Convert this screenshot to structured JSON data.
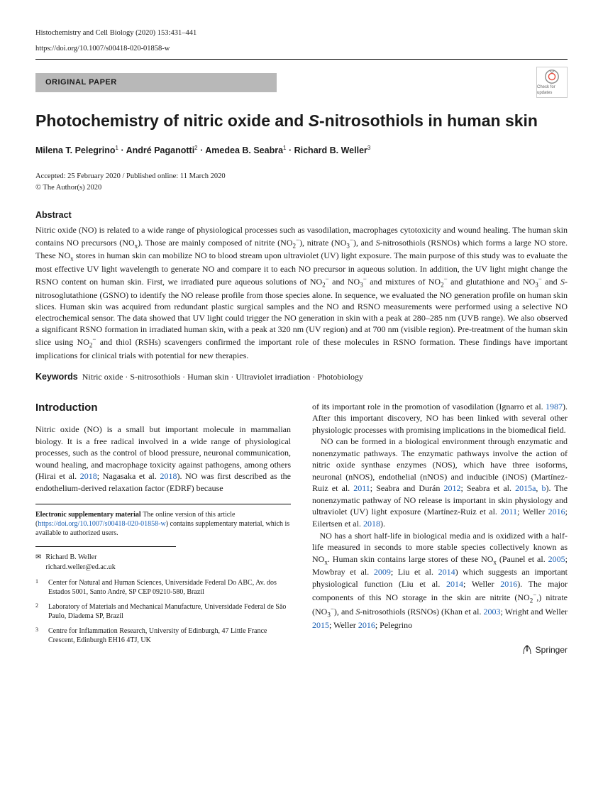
{
  "header": {
    "journal_line": "Histochemistry and Cell Biology (2020) 153:431–441",
    "doi_line": "https://doi.org/10.1007/s00418-020-01858-w",
    "paper_type": "ORIGINAL PAPER",
    "check_updates": "Check for updates"
  },
  "title_parts": {
    "pre": "Photochemistry of nitric oxide and ",
    "italic": "S",
    "post": "-nitrosothiols in human skin"
  },
  "authors_html": "Milena T. Pelegrino<sup>1</sup> · André Paganotti<sup>2</sup> · Amedea B. Seabra<sup>1</sup> · Richard B. Weller<sup>3</sup>",
  "pub": {
    "dates": "Accepted: 25 February 2020 / Published online: 11 March 2020",
    "copyright": "© The Author(s) 2020"
  },
  "abstract": {
    "heading": "Abstract",
    "text_html": "Nitric oxide (NO) is related to a wide range of physiological processes such as vasodilation, macrophages cytotoxicity and wound healing. The human skin contains NO precursors (NO<sub>x</sub>). Those are mainly composed of nitrite (NO<sub>2</sub><sup>−</sup>), nitrate (NO<sub>3</sub><sup>−</sup>), and <i>S</i>-nitrosothiols (RSNOs) which forms a large NO store. These NO<sub>x</sub> stores in human skin can mobilize NO to blood stream upon ultraviolet (UV) light exposure. The main purpose of this study was to evaluate the most effective UV light wavelength to generate NO and compare it to each NO precursor in aqueous solution. In addition, the UV light might change the RSNO content on human skin. First, we irradiated pure aqueous solutions of NO<sub>2</sub><sup>−</sup> and NO<sub>3</sub><sup>−</sup> and mixtures of NO<sub>2</sub><sup>−</sup> and glutathione and NO<sub>3</sub><sup>−</sup> and <i>S</i>-nitrosoglutathione (GSNO) to identify the NO release profile from those species alone. In sequence, we evaluated the NO generation profile on human skin slices. Human skin was acquired from redundant plastic surgical samples and the NO and RSNO measurements were performed using a selective NO electrochemical sensor. The data showed that UV light could trigger the NO generation in skin with a peak at 280–285 nm (UVB range). We also observed a significant RSNO formation in irradiated human skin, with a peak at 320 nm (UV region) and at 700 nm (visible region). Pre-treatment of the human skin slice using NO<sub>2</sub><sup>−</sup> and thiol (RSHs) scavengers confirmed the important role of these molecules in RSNO formation. These findings have important implications for clinical trials with potential for new therapies."
  },
  "keywords": {
    "label": "Keywords",
    "text": "Nitric oxide · S-nitrosothiols · Human skin · Ultraviolet irradiation · Photobiology"
  },
  "intro": {
    "heading": "Introduction",
    "left_html": "Nitric oxide (NO) is a small but important molecule in mammalian biology. It is a free radical involved in a wide range of physiological processes, such as the control of blood pressure, neuronal communication, wound healing, and macrophage toxicity against pathogens, among others (Hirai et al. <span class='link'>2018</span>; Nagasaka et al. <span class='link'>2018</span>). NO was first described as the endothelium-derived relaxation factor (EDRF) because",
    "right_html": "of its important role in the promotion of vasodilation (Ignarro et al. <span class='link'>1987</span>). After this important discovery, NO has been linked with several other physiologic processes with promising implications in the biomedical field.<br>&nbsp;&nbsp;&nbsp;NO can be formed in a biological environment through enzymatic and nonenzymatic pathways. The enzymatic pathways involve the action of nitric oxide synthase enzymes (NOS), which have three isoforms, neuronal (nNOS), endothelial (nNOS) and inducible (iNOS) (Martínez-Ruiz et al. <span class='link'>2011</span>; Seabra and Durán <span class='link'>2012</span>; Seabra et al. <span class='link'>2015a</span>, <span class='link'>b</span>). The nonenzymatic pathway of NO release is important in skin physiology and ultraviolet (UV) light exposure (Martínez-Ruiz et al. <span class='link'>2011</span>; Weller <span class='link'>2016</span>; Eilertsen et al. <span class='link'>2018</span>).<br>&nbsp;&nbsp;&nbsp;NO has a short half-life in biological media and is oxidized with a half-life measured in seconds to more stable species collectively known as NO<sub>x</sub>. Human skin contains large stores of these NO<sub>x</sub> (Paunel et al. <span class='link'>2005</span>; Mowbray et al. <span class='link'>2009</span>; Liu et al. <span class='link'>2014</span>) which suggests an important physiological function (Liu et al. <span class='link'>2014</span>; Weller <span class='link'>2016</span>). The major components of this NO storage in the skin are nitrite (NO<sub>2</sub><sup>−</sup>,) nitrate (NO<sub>3</sub><sup>−</sup>), and <i>S</i>-nitrosothiols (RSNOs) (Khan et al. <span class='link'>2003</span>; Wright and Weller <span class='link'>2015</span>; Weller <span class='link'>2016</span>; Pelegrino"
  },
  "suppmat": {
    "label": "Electronic supplementary material",
    "text_pre": "The online version of this article (",
    "link": "https://doi.org/10.1007/s00418-020-01858-w",
    "text_post": ") contains supplementary material, which is available to authorized users."
  },
  "correspondence": {
    "name": "Richard B. Weller",
    "email": "richard.weller@ed.ac.uk"
  },
  "affiliations": [
    {
      "num": "1",
      "text": "Center for Natural and Human Sciences, Universidade Federal Do ABC, Av. dos Estados 5001, Santo André, SP CEP 09210-580, Brazil"
    },
    {
      "num": "2",
      "text": "Laboratory of Materials and Mechanical Manufacture, Universidade Federal de São Paulo, Diadema SP, Brazil"
    },
    {
      "num": "3",
      "text": "Centre for Inflammation Research, University of Edinburgh, 47 Little France Crescent, Edinburgh EH16 4TJ, UK"
    }
  ],
  "publisher": "Springer"
}
